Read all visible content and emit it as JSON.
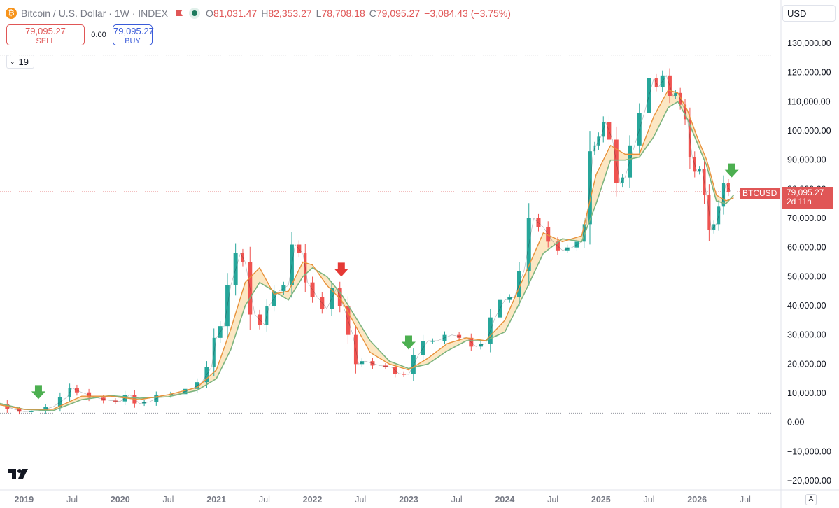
{
  "header": {
    "logo_glyph": "₿",
    "symbol": "Bitcoin / U.S. Dollar · 1W · INDEX",
    "open_key": "O",
    "open": "81,031.47",
    "high_key": "H",
    "high": "82,353.27",
    "low_key": "L",
    "low": "78,708.18",
    "close_key": "C",
    "close": "79,095.27",
    "change": "−3,084.43 (−3.75%)"
  },
  "trade": {
    "sell_price": "79,095.27",
    "sell_label": "SELL",
    "spread": "0.00",
    "buy_price": "79,095.27",
    "buy_label": "BUY"
  },
  "indicator_count": "19",
  "currency": "USD",
  "last_price": {
    "tag": "BTCUSD",
    "value": "79,095.27",
    "countdown": "2d 11h"
  },
  "auto_label": "A",
  "colors": {
    "up": "#26a69a",
    "down": "#ef5350",
    "fast_ma": "#e8913a",
    "slow_ma": "#7cb47f",
    "fill": "#fbe3b8",
    "buy_arrow": "#4caf50",
    "sell_arrow": "#e53935",
    "accent": "#e05656"
  },
  "chart_data": {
    "type": "line",
    "title": "Bitcoin / U.S. Dollar · 1W · INDEX",
    "ylim": [
      -20000,
      130000
    ],
    "y_ticks": [
      "130,000.00",
      "120,000.00",
      "110,000.00",
      "100,000.00",
      "90,000.00",
      "80,000.00",
      "70,000.00",
      "60,000.00",
      "50,000.00",
      "40,000.00",
      "30,000.00",
      "20,000.00",
      "10,000.00",
      "0.00",
      "−10,000.00",
      "−20,000.00"
    ],
    "y_tick_values": [
      130000,
      120000,
      110000,
      100000,
      90000,
      80000,
      70000,
      60000,
      50000,
      40000,
      30000,
      20000,
      10000,
      0,
      -10000,
      -20000
    ],
    "x_ticks": [
      "2019",
      "Jul",
      "2020",
      "Jul",
      "2021",
      "Jul",
      "2022",
      "Jul",
      "2023",
      "Jul",
      "2024",
      "Jul",
      "2025",
      "Jul",
      "2026",
      "Jul"
    ],
    "x_tick_dates": [
      2019.0,
      2019.5,
      2020.0,
      2020.5,
      2021.0,
      2021.5,
      2022.0,
      2022.5,
      2023.0,
      2023.5,
      2024.0,
      2024.5,
      2025.0,
      2025.5,
      2026.0,
      2026.5
    ],
    "x_range": [
      2018.75,
      2026.85
    ],
    "grid": false,
    "reference_lines": [
      126000,
      79095.27,
      3200
    ],
    "price_series": {
      "name": "BTCUSD",
      "x": [
        2018.75,
        2018.9,
        2019.0,
        2019.15,
        2019.3,
        2019.45,
        2019.5,
        2019.6,
        2019.75,
        2019.9,
        2020.0,
        2020.1,
        2020.2,
        2020.3,
        2020.45,
        2020.6,
        2020.75,
        2020.85,
        2020.95,
        2021.0,
        2021.08,
        2021.15,
        2021.25,
        2021.3,
        2021.4,
        2021.5,
        2021.55,
        2021.65,
        2021.75,
        2021.82,
        2021.9,
        2021.95,
        2022.05,
        2022.15,
        2022.25,
        2022.32,
        2022.42,
        2022.48,
        2022.55,
        2022.7,
        2022.82,
        2022.9,
        2023.0,
        2023.1,
        2023.2,
        2023.3,
        2023.45,
        2023.6,
        2023.7,
        2023.8,
        2023.9,
        2024.0,
        2024.1,
        2024.2,
        2024.3,
        2024.4,
        2024.5,
        2024.6,
        2024.7,
        2024.8,
        2024.85,
        2024.92,
        2024.95,
        2025.0,
        2025.05,
        2025.12,
        2025.2,
        2025.25,
        2025.35,
        2025.45,
        2025.55,
        2025.6,
        2025.68,
        2025.75,
        2025.8,
        2025.85,
        2025.9,
        2025.95,
        2026.0,
        2026.05,
        2026.1,
        2026.15,
        2026.2,
        2026.25,
        2026.3,
        2026.35
      ],
      "y": [
        6400,
        4500,
        3700,
        3900,
        5300,
        8700,
        11800,
        10300,
        8500,
        7500,
        7200,
        9500,
        6500,
        7000,
        9300,
        9700,
        11500,
        13800,
        19000,
        29000,
        33000,
        47000,
        58000,
        55000,
        37000,
        33500,
        40000,
        45000,
        47000,
        61000,
        58000,
        48000,
        43000,
        39000,
        46000,
        40000,
        30000,
        20000,
        21000,
        19500,
        19000,
        16700,
        16500,
        23000,
        28000,
        28000,
        30000,
        29000,
        26000,
        27000,
        36000,
        42000,
        43000,
        52000,
        70000,
        67000,
        62000,
        59000,
        60000,
        62000,
        68000,
        93000,
        95000,
        98000,
        103000,
        97000,
        82000,
        84000,
        95000,
        106000,
        118000,
        115000,
        119000,
        112000,
        113000,
        109000,
        104000,
        91000,
        86000,
        87000,
        78000,
        66000,
        68000,
        74000,
        82000,
        79095
      ]
    },
    "ma_fast": {
      "x": [
        2018.75,
        2019.0,
        2019.3,
        2019.6,
        2019.9,
        2020.2,
        2020.5,
        2020.8,
        2021.0,
        2021.15,
        2021.3,
        2021.45,
        2021.6,
        2021.75,
        2021.9,
        2022.0,
        2022.15,
        2022.3,
        2022.45,
        2022.6,
        2022.8,
        2023.0,
        2023.2,
        2023.4,
        2023.6,
        2023.8,
        2024.0,
        2024.2,
        2024.4,
        2024.6,
        2024.8,
        2024.95,
        2025.1,
        2025.25,
        2025.4,
        2025.55,
        2025.7,
        2025.8,
        2025.9,
        2026.0,
        2026.1,
        2026.2,
        2026.3,
        2026.38
      ],
      "y": [
        6000,
        4500,
        4500,
        9000,
        9000,
        7800,
        9500,
        12000,
        18000,
        32000,
        48000,
        53000,
        44000,
        45000,
        55000,
        54000,
        47000,
        42000,
        33000,
        24000,
        20000,
        18000,
        22000,
        27000,
        29000,
        28000,
        35000,
        50000,
        65000,
        62000,
        64000,
        85000,
        95000,
        92000,
        92000,
        105000,
        114000,
        113000,
        107000,
        98000,
        90000,
        78000,
        76000,
        77000
      ]
    },
    "ma_slow": {
      "x": [
        2018.75,
        2019.0,
        2019.3,
        2019.6,
        2019.9,
        2020.2,
        2020.5,
        2020.8,
        2021.0,
        2021.15,
        2021.3,
        2021.45,
        2021.6,
        2021.75,
        2021.9,
        2022.0,
        2022.15,
        2022.3,
        2022.45,
        2022.6,
        2022.8,
        2023.0,
        2023.2,
        2023.4,
        2023.6,
        2023.8,
        2024.0,
        2024.2,
        2024.4,
        2024.6,
        2024.8,
        2024.95,
        2025.1,
        2025.25,
        2025.4,
        2025.55,
        2025.7,
        2025.8,
        2025.9,
        2026.0,
        2026.1,
        2026.2,
        2026.3,
        2026.38
      ],
      "y": [
        6500,
        4500,
        4000,
        7800,
        9200,
        8300,
        8800,
        11000,
        15000,
        25000,
        40000,
        48000,
        45000,
        42000,
        50000,
        53000,
        50000,
        44000,
        36000,
        28000,
        21000,
        18500,
        20000,
        24500,
        28000,
        28000,
        31000,
        44000,
        58000,
        63000,
        62000,
        75000,
        90000,
        90000,
        91000,
        98000,
        108000,
        110000,
        104000,
        96000,
        88000,
        76000,
        75000,
        78000
      ]
    },
    "signals": [
      {
        "type": "buy",
        "x": 2019.15,
        "y": 8000
      },
      {
        "type": "sell",
        "x": 2022.3,
        "y": 50000
      },
      {
        "type": "buy",
        "x": 2023.0,
        "y": 25000
      },
      {
        "type": "buy",
        "x": 2026.36,
        "y": 84000
      }
    ]
  }
}
